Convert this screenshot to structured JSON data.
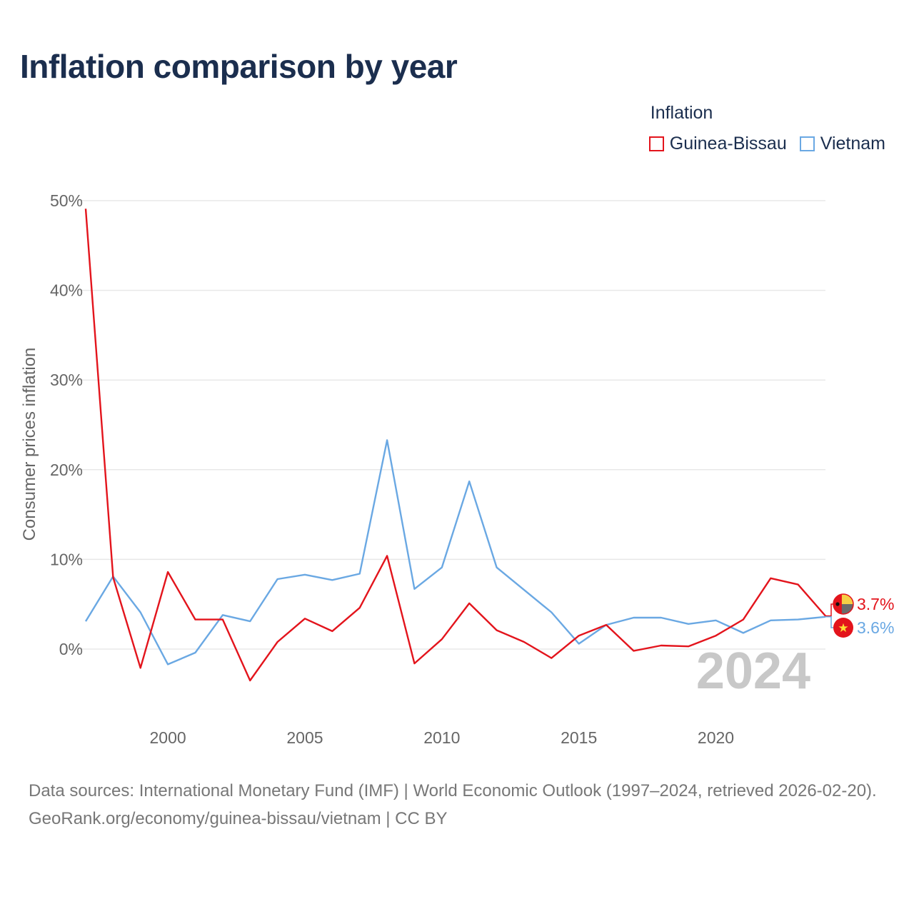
{
  "title": "Inflation comparison by year",
  "legend": {
    "title": "Inflation",
    "items": [
      {
        "label": "Guinea-Bissau",
        "color": "#e3141c"
      },
      {
        "label": "Vietnam",
        "color": "#6aa8e3"
      }
    ]
  },
  "chart_data": {
    "type": "line",
    "title": "Inflation comparison by year",
    "ylabel": "Consumer prices inflation",
    "xlabel": "",
    "xlim": [
      1997,
      2024
    ],
    "ylim": [
      -8,
      50
    ],
    "x_ticks": [
      2000,
      2005,
      2010,
      2015,
      2020
    ],
    "y_ticks": [
      {
        "value": 0,
        "label": "0%"
      },
      {
        "value": 10,
        "label": "10%"
      },
      {
        "value": 20,
        "label": "20%"
      },
      {
        "value": 30,
        "label": "30%"
      },
      {
        "value": 40,
        "label": "40%"
      },
      {
        "value": 50,
        "label": "50%"
      }
    ],
    "x": [
      1997,
      1998,
      1999,
      2000,
      2001,
      2002,
      2003,
      2004,
      2005,
      2006,
      2007,
      2008,
      2009,
      2010,
      2011,
      2012,
      2013,
      2014,
      2015,
      2016,
      2017,
      2018,
      2019,
      2020,
      2021,
      2022,
      2023,
      2024
    ],
    "series": [
      {
        "name": "Guinea-Bissau",
        "color": "#e3141c",
        "end_label": "3.7%",
        "values": [
          49.1,
          8.0,
          -2.1,
          8.6,
          3.3,
          3.3,
          -3.5,
          0.8,
          3.4,
          2.0,
          4.6,
          10.4,
          -1.6,
          1.1,
          5.1,
          2.1,
          0.8,
          -1.0,
          1.5,
          2.7,
          -0.2,
          0.4,
          0.3,
          1.5,
          3.3,
          7.9,
          7.2,
          3.7
        ]
      },
      {
        "name": "Vietnam",
        "color": "#6aa8e3",
        "end_label": "3.6%",
        "values": [
          3.1,
          8.1,
          4.1,
          -1.7,
          -0.4,
          3.8,
          3.1,
          7.8,
          8.3,
          7.7,
          8.4,
          23.3,
          6.7,
          9.1,
          18.7,
          9.1,
          6.6,
          4.1,
          0.6,
          2.7,
          3.5,
          3.5,
          2.8,
          3.2,
          1.8,
          3.2,
          3.3,
          3.6
        ]
      }
    ],
    "current_year_label": "2024"
  },
  "footer": {
    "sources": "Data sources: International Monetary Fund (IMF) | World Economic Outlook (1997–2024, retrieved 2026-02-20).",
    "credit": "GeoRank.org/economy/guinea-bissau/vietnam | CC BY"
  }
}
